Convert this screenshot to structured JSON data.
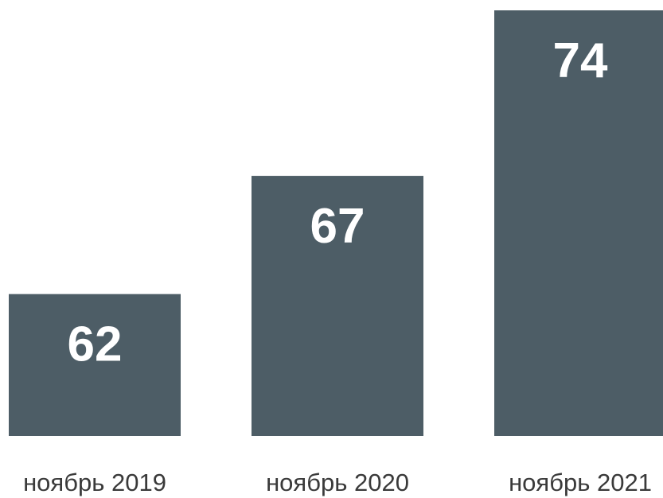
{
  "chart_data": {
    "type": "bar",
    "categories": [
      "ноябрь 2019",
      "ноябрь 2020",
      "ноябрь 2021"
    ],
    "values": [
      62,
      67,
      74
    ],
    "color": "#4d5d66",
    "ylim": [
      56,
      74
    ]
  }
}
